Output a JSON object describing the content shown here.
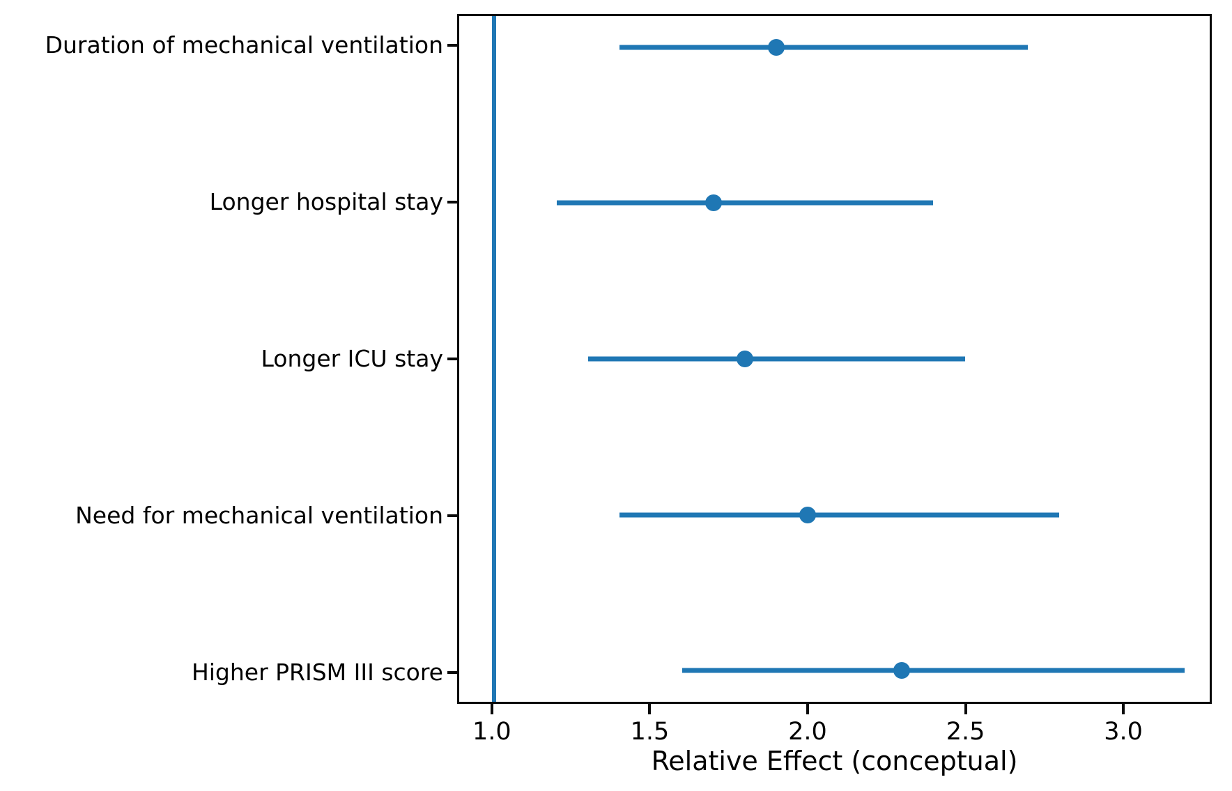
{
  "colors": {
    "accent": "#1f77b4",
    "axis": "#0a0a0a",
    "background": "#ffffff"
  },
  "chart_data": {
    "type": "scatter",
    "subtype": "forest-plot-horizontal-errorbars",
    "title": "",
    "xlabel": "Relative Effect (conceptual)",
    "ylabel": "",
    "xlim": [
      0.89,
      3.28
    ],
    "x_ticks": [
      1.0,
      1.5,
      2.0,
      2.5,
      3.0
    ],
    "x_tick_labels": [
      "1.0",
      "1.5",
      "2.0",
      "2.5",
      "3.0"
    ],
    "reference_line_x": 1.0,
    "grid": false,
    "legend": false,
    "categories": [
      "Duration of mechanical ventilation",
      "Longer hospital stay",
      "Longer ICU stay",
      "Need for mechanical ventilation",
      "Higher PRISM III score"
    ],
    "series": [
      {
        "name": "relative-effect-points",
        "values": [
          1.9,
          1.7,
          1.8,
          2.0,
          2.3
        ],
        "ci_low": [
          1.4,
          1.2,
          1.3,
          1.4,
          1.6
        ],
        "ci_high": [
          2.7,
          2.4,
          2.5,
          2.8,
          3.2
        ]
      }
    ],
    "marker_color": "#1f77b4",
    "errorbar_color": "#1f77b4",
    "reference_line_color": "#1f77b4"
  }
}
